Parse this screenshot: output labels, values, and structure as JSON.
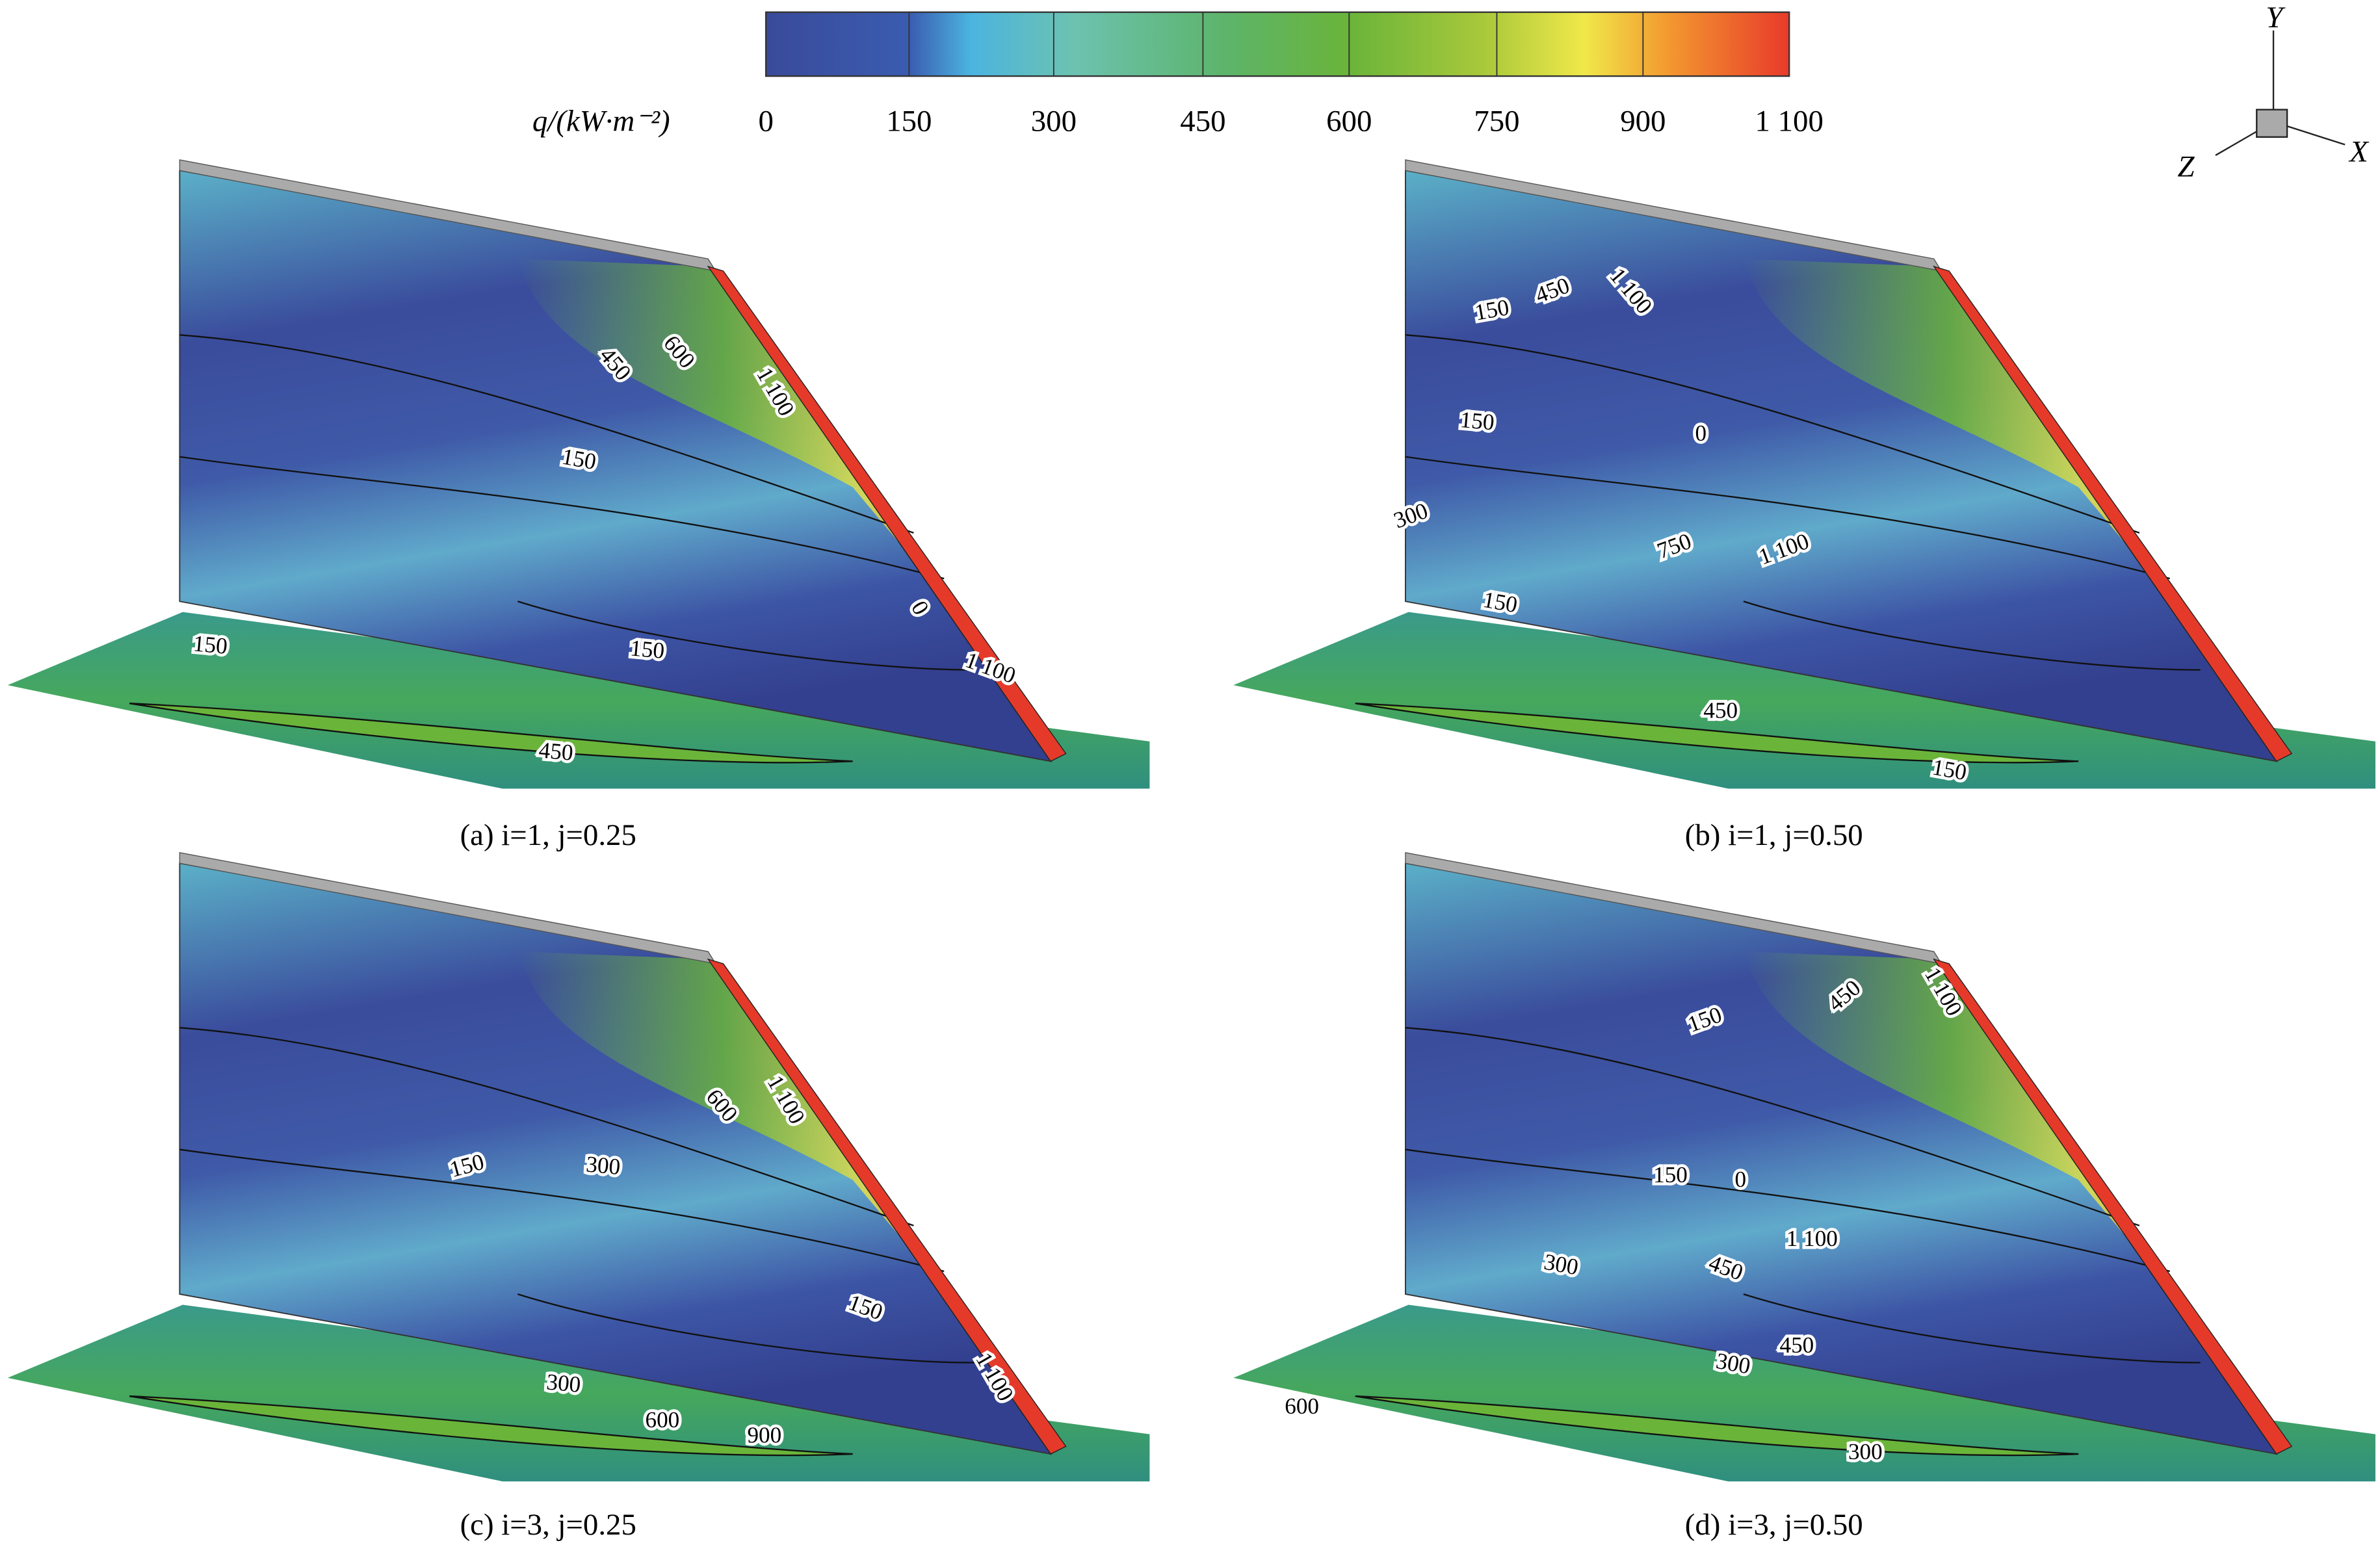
{
  "colorbar": {
    "label": "q/(kW·m⁻²)",
    "ticks": [
      "0",
      "150",
      "300",
      "450",
      "600",
      "750",
      "900",
      "1 100"
    ]
  },
  "axes": {
    "y": "Y",
    "x": "X",
    "z": "Z"
  },
  "panels": [
    {
      "caption": "(a) i=1, j=0.25",
      "contour_labels": [
        "600",
        "450",
        "1 100",
        "150",
        "0",
        "150",
        "150",
        "1 100",
        "450"
      ]
    },
    {
      "caption": "(b) i=1, j=0.50",
      "contour_labels": [
        "450",
        "1 100",
        "150",
        "150",
        "0",
        "300",
        "750",
        "1 100",
        "150",
        "450",
        "150"
      ]
    },
    {
      "caption": "(c) i=3, j=0.25",
      "contour_labels": [
        "600",
        "1 100",
        "150",
        "300",
        "150",
        "1 100",
        "300",
        "600",
        "900"
      ]
    },
    {
      "caption": "(d) i=3, j=0.50",
      "contour_labels": [
        "450",
        "1 100",
        "150",
        "150",
        "0",
        "1 100",
        "300",
        "450",
        "450",
        "300",
        "600",
        "300"
      ]
    }
  ]
}
